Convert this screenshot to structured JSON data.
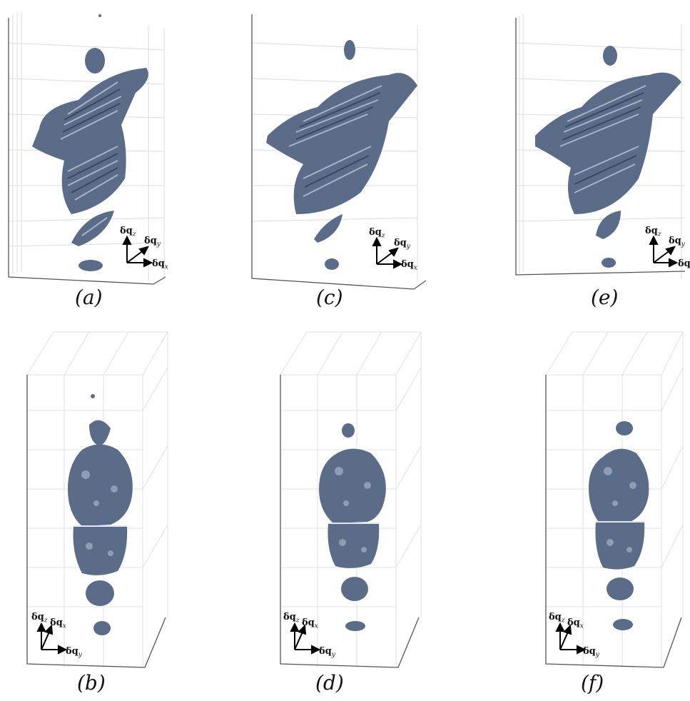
{
  "figure": {
    "panels": [
      {
        "id": "a",
        "caption": "(a)",
        "view": "oblique",
        "axes": {
          "z": "δq",
          "z_sub": "z",
          "y": "δq",
          "y_sub": "y",
          "x": "δq",
          "x_sub": "x"
        }
      },
      {
        "id": "c",
        "caption": "(c)",
        "view": "oblique",
        "axes": {
          "z": "δq",
          "z_sub": "z",
          "y": "δq",
          "y_sub": "y",
          "x": "δq",
          "x_sub": "x"
        }
      },
      {
        "id": "e",
        "caption": "(e)",
        "view": "oblique",
        "axes": {
          "z": "δq",
          "z_sub": "z",
          "y": "δq",
          "y_sub": "y",
          "x": "δq",
          "x_sub": "x"
        }
      },
      {
        "id": "b",
        "caption": "(b)",
        "view": "front",
        "axes": {
          "z": "δq",
          "z_sub": "z",
          "x": "δq",
          "x_sub": "x",
          "y": "δq",
          "y_sub": "y"
        }
      },
      {
        "id": "d",
        "caption": "(d)",
        "view": "front",
        "axes": {
          "z": "δq",
          "z_sub": "z",
          "x": "δq",
          "x_sub": "x",
          "y": "δq",
          "y_sub": "y"
        }
      },
      {
        "id": "f",
        "caption": "(f)",
        "view": "front",
        "axes": {
          "z": "δq",
          "z_sub": "z",
          "x": "δq",
          "x_sub": "x",
          "y": "δq",
          "y_sub": "y"
        }
      }
    ],
    "colors": {
      "surface": "#5a6c87",
      "highlight": "#b9c6d8",
      "shadow": "#2c3a52",
      "grid": "#d9d9d9",
      "frame": "#555555"
    }
  }
}
